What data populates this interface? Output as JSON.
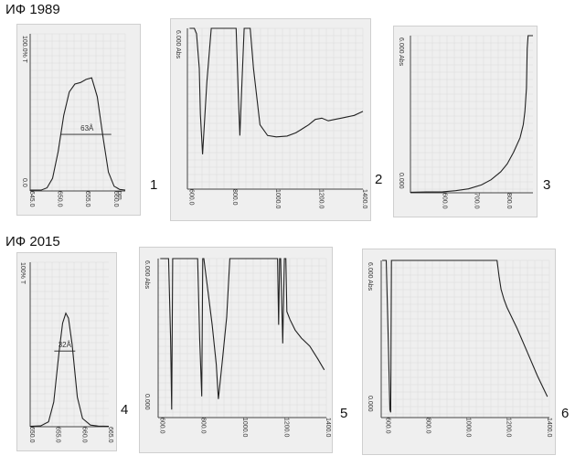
{
  "headings": {
    "top": "ИФ 1989",
    "bottom": "ИФ  2015"
  },
  "panel_numbers": [
    "1",
    "2",
    "3",
    "4",
    "5",
    "6"
  ],
  "chart_data": [
    {
      "panel": "1",
      "type": "line",
      "ylabels": [
        "100.0% T",
        "0.0"
      ],
      "xunit": "nm",
      "xticks": [
        "645.0",
        "650.0",
        "655.0",
        "660.0"
      ],
      "annotation": "63Å",
      "x": [
        645.0,
        647.0,
        648.0,
        649.0,
        650.0,
        651.0,
        652.0,
        653.0,
        654.0,
        655.0,
        656.0,
        657.0,
        658.0,
        659.0,
        660.0,
        661.0,
        662.0
      ],
      "y": [
        0.5,
        0.6,
        2,
        8,
        25,
        48,
        63,
        68,
        69,
        71,
        72,
        60,
        35,
        12,
        3,
        1,
        0.6
      ],
      "xlim": [
        645.0,
        662.0
      ],
      "ylim": [
        0,
        100
      ]
    },
    {
      "panel": "2",
      "type": "line",
      "ylabels": [
        "6.000 Abs"
      ],
      "xticks": [
        "600.0",
        "800.0",
        "1000.0",
        "1200.0",
        "1400.0"
      ],
      "x": [
        600,
        622,
        632,
        645,
        650,
        660,
        680,
        700,
        750,
        800,
        815,
        825,
        832,
        842,
        852,
        862,
        880,
        895,
        925,
        960,
        1000,
        1050,
        1090,
        1110,
        1130,
        1150,
        1180,
        1210,
        1240,
        1270,
        1300,
        1330,
        1360,
        1400
      ],
      "y": [
        6.0,
        6.0,
        5.8,
        4.5,
        2.8,
        1.3,
        4.0,
        6.0,
        6.0,
        6.0,
        6.0,
        3.5,
        2.0,
        4.0,
        6.0,
        6.0,
        6.0,
        4.5,
        2.4,
        2.0,
        1.95,
        1.98,
        2.1,
        2.2,
        2.3,
        2.4,
        2.6,
        2.65,
        2.55,
        2.6,
        2.65,
        2.7,
        2.75,
        2.9
      ],
      "xlim": [
        590,
        1400
      ],
      "ylim": [
        0,
        6.0
      ]
    },
    {
      "panel": "3",
      "type": "line",
      "ylabels": [
        "6.000 Abs",
        "0.000"
      ],
      "xticks": [
        "600.0",
        "700.0",
        "800.0"
      ],
      "x": [
        500,
        550,
        600,
        640,
        680,
        720,
        750,
        780,
        800,
        820,
        840,
        850,
        855,
        860,
        862,
        865,
        880
      ],
      "y": [
        0.02,
        0.03,
        0.04,
        0.08,
        0.15,
        0.3,
        0.5,
        0.8,
        1.1,
        1.55,
        2.1,
        2.6,
        3.1,
        4.0,
        5.5,
        6.0,
        6.0
      ],
      "xlim": [
        500,
        880
      ],
      "ylim": [
        0,
        6.0
      ]
    },
    {
      "panel": "4",
      "type": "line",
      "ylabels": [
        "100% T"
      ],
      "xticks": [
        "650.0",
        "655.0",
        "660.0",
        "665.0"
      ],
      "annotation": "32Å",
      "x": [
        650.0,
        652.0,
        653.5,
        654.5,
        655.5,
        656.2,
        656.8,
        657.3,
        658.0,
        659.0,
        660.0,
        661.5,
        663.0,
        665.0
      ],
      "y": [
        0.3,
        0.5,
        3,
        15,
        45,
        63,
        69,
        66,
        50,
        18,
        5,
        1,
        0.4,
        0.3
      ],
      "xlim": [
        650.0,
        665.0
      ],
      "ylim": [
        0,
        100
      ]
    },
    {
      "panel": "5",
      "type": "line",
      "ylabels": [
        "6.000 Abs",
        "0.000"
      ],
      "xticks": [
        "600.0",
        "800.0",
        "1000.0",
        "1200.0",
        "1400.0"
      ],
      "x": [
        600,
        640,
        650,
        655,
        660,
        700,
        780,
        790,
        800,
        805,
        810,
        850,
        870,
        880,
        900,
        920,
        935,
        945,
        960,
        1000,
        1100,
        1150,
        1165,
        1170,
        1175,
        1180,
        1190,
        1198,
        1205,
        1210,
        1225,
        1250,
        1280,
        1320,
        1360,
        1390
      ],
      "y": [
        6.0,
        6.0,
        3.0,
        0.3,
        6.0,
        6.0,
        6.0,
        3.0,
        0.8,
        6.0,
        6.0,
        3.5,
        2.0,
        0.7,
        2.2,
        3.8,
        6.0,
        6.0,
        6.0,
        6.0,
        6.0,
        6.0,
        6.0,
        3.5,
        6.0,
        6.0,
        2.8,
        6.0,
        6.0,
        4.0,
        3.7,
        3.3,
        3.0,
        2.7,
        2.2,
        1.8
      ],
      "xlim": [
        590,
        1400
      ],
      "ylim": [
        0,
        6.0
      ]
    },
    {
      "panel": "6",
      "type": "line",
      "ylabels": [
        "6.000 Abs",
        "0.000"
      ],
      "xticks": [
        "600.0",
        "800.0",
        "1000.0",
        "1200.0",
        "1400.0"
      ],
      "x": [
        580,
        600,
        610,
        618,
        622,
        626,
        640,
        700,
        800,
        900,
        1000,
        1100,
        1150,
        1160,
        1170,
        1185,
        1200,
        1250,
        1300,
        1350,
        1400
      ],
      "y": [
        6.0,
        6.0,
        3.0,
        0.3,
        0.2,
        6.0,
        6.0,
        6.0,
        6.0,
        6.0,
        6.0,
        6.0,
        6.0,
        5.4,
        4.9,
        4.5,
        4.2,
        3.4,
        2.5,
        1.6,
        0.8
      ],
      "xlim": [
        575,
        1410
      ],
      "ylim": [
        0,
        6.0
      ]
    }
  ]
}
